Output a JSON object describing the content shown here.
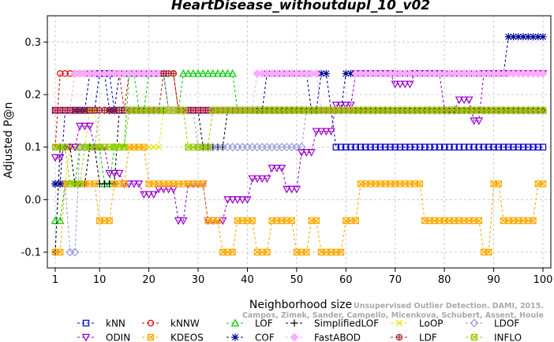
{
  "chart_data": {
    "type": "line",
    "title": "HeartDisease_withoutdupl_10_v02",
    "xlabel": "Neighborhood size",
    "ylabel": "Adjusted P@n",
    "xlim": [
      1,
      100
    ],
    "ylim": [
      -0.13,
      0.35
    ],
    "x_ticks": [
      "1",
      "10",
      "20",
      "30",
      "40",
      "50",
      "60",
      "70",
      "80",
      "90",
      "100"
    ],
    "y_ticks": [
      "-0.1",
      "0.0",
      "0.1",
      "0.2",
      "0.3"
    ],
    "grid": true,
    "legend_position": "bottom",
    "watermark": {
      "line1": "Unsupervised Outlier Detection. DAMI, 2015.",
      "line2": "Campos, Zimek, Sander, Campello, Micenkova, Schubert, Assent, Houle"
    },
    "series": [
      {
        "name": "kNN",
        "color": "#0000cc",
        "marker": "square",
        "segments": [
          [
            1,
            0.17
          ],
          [
            9,
            0.17
          ],
          [
            10,
            0.24
          ],
          [
            13,
            0.17
          ],
          [
            57,
            0.17
          ],
          [
            58,
            0.1
          ],
          [
            100,
            0.1
          ]
        ]
      },
      {
        "name": "kNNW",
        "color": "#dd0000",
        "marker": "circle",
        "segments": [
          [
            1,
            0.1
          ],
          [
            2,
            0.24
          ],
          [
            14,
            0.24
          ],
          [
            15,
            0.17
          ],
          [
            16,
            0.24
          ],
          [
            25,
            0.24
          ],
          [
            26,
            0.17
          ],
          [
            100,
            0.17
          ]
        ]
      },
      {
        "name": "LOF",
        "color": "#00cc00",
        "marker": "triangle",
        "segments": [
          [
            1,
            -0.04
          ],
          [
            3,
            0.03
          ],
          [
            6,
            0.1
          ],
          [
            11,
            0.03
          ],
          [
            13,
            0.1
          ],
          [
            16,
            0.24
          ],
          [
            18,
            0.17
          ],
          [
            20,
            0.24
          ],
          [
            24,
            0.17
          ],
          [
            27,
            0.24
          ],
          [
            36,
            0.24
          ],
          [
            38,
            0.17
          ],
          [
            100,
            0.17
          ]
        ]
      },
      {
        "name": "SimplifiedLOF",
        "color": "#000000",
        "marker": "plus",
        "segments": [
          [
            1,
            -0.1
          ],
          [
            2,
            0.1
          ],
          [
            5,
            0.03
          ],
          [
            8,
            0.1
          ],
          [
            10,
            0.03
          ],
          [
            14,
            0.17
          ],
          [
            30,
            0.17
          ],
          [
            31,
            0.1
          ],
          [
            35,
            0.1
          ],
          [
            36,
            0.17
          ],
          [
            100,
            0.17
          ]
        ]
      },
      {
        "name": "LoOP",
        "color": "#e6e600",
        "marker": "x",
        "segments": [
          [
            1,
            0.03
          ],
          [
            4,
            0.1
          ],
          [
            8,
            0.17
          ],
          [
            10,
            0.1
          ],
          [
            20,
            0.1
          ],
          [
            23,
            0.17
          ],
          [
            100,
            0.17
          ]
        ]
      },
      {
        "name": "LDOF",
        "color": "#9999dd",
        "marker": "diamond",
        "segments": [
          [
            1,
            0.03
          ],
          [
            4,
            -0.1
          ],
          [
            6,
            0.1
          ],
          [
            10,
            0.17
          ],
          [
            30,
            0.1
          ],
          [
            48,
            0.1
          ],
          [
            52,
            0.17
          ],
          [
            100,
            0.17
          ]
        ]
      },
      {
        "name": "ODIN",
        "color": "#9900cc",
        "marker": "triangle-down",
        "segments": [
          [
            1,
            0.08
          ],
          [
            3,
            0.1
          ],
          [
            6,
            0.14
          ],
          [
            9,
            0.1
          ],
          [
            12,
            0.05
          ],
          [
            15,
            0.03
          ],
          [
            19,
            0.01
          ],
          [
            22,
            0.02
          ],
          [
            26,
            -0.04
          ],
          [
            28,
            0.03
          ],
          [
            32,
            -0.04
          ],
          [
            36,
            0.0
          ],
          [
            39,
            0.0
          ],
          [
            41,
            0.04
          ],
          [
            45,
            0.06
          ],
          [
            48,
            0.02
          ],
          [
            51,
            0.09
          ],
          [
            54,
            0.13
          ],
          [
            58,
            0.18
          ],
          [
            62,
            0.24
          ],
          [
            66,
            0.24
          ],
          [
            70,
            0.22
          ],
          [
            74,
            0.24
          ],
          [
            80,
            0.17
          ],
          [
            83,
            0.19
          ],
          [
            86,
            0.15
          ],
          [
            88,
            0.24
          ],
          [
            100,
            0.24
          ]
        ]
      },
      {
        "name": "KDEOS",
        "color": "#ffaa00",
        "marker": "square-x",
        "segments": [
          [
            1,
            -0.1
          ],
          [
            3,
            0.03
          ],
          [
            10,
            -0.04
          ],
          [
            13,
            0.03
          ],
          [
            16,
            0.1
          ],
          [
            20,
            0.03
          ],
          [
            30,
            0.03
          ],
          [
            32,
            -0.04
          ],
          [
            35,
            -0.1
          ],
          [
            38,
            -0.04
          ],
          [
            42,
            -0.1
          ],
          [
            45,
            -0.04
          ],
          [
            50,
            -0.1
          ],
          [
            53,
            -0.04
          ],
          [
            55,
            -0.1
          ],
          [
            60,
            -0.04
          ],
          [
            63,
            0.03
          ],
          [
            74,
            0.03
          ],
          [
            76,
            -0.04
          ],
          [
            80,
            -0.04
          ],
          [
            84,
            -0.04
          ],
          [
            88,
            -0.1
          ],
          [
            90,
            0.03
          ],
          [
            92,
            -0.04
          ],
          [
            97,
            -0.04
          ],
          [
            99,
            0.03
          ],
          [
            100,
            0.03
          ]
        ]
      },
      {
        "name": "COF",
        "color": "#000099",
        "marker": "star",
        "segments": [
          [
            1,
            0.03
          ],
          [
            3,
            0.17
          ],
          [
            8,
            0.24
          ],
          [
            12,
            0.17
          ],
          [
            14,
            0.24
          ],
          [
            22,
            0.24
          ],
          [
            24,
            0.17
          ],
          [
            43,
            0.17
          ],
          [
            44,
            0.24
          ],
          [
            52,
            0.24
          ],
          [
            53,
            0.17
          ],
          [
            55,
            0.24
          ],
          [
            57,
            0.17
          ],
          [
            60,
            0.24
          ],
          [
            90,
            0.24
          ],
          [
            93,
            0.31
          ],
          [
            100,
            0.31
          ]
        ]
      },
      {
        "name": "FastABOD",
        "color": "#ffaaff",
        "marker": "diamond-filled",
        "segments": [
          [
            1,
            0.17
          ],
          [
            5,
            0.24
          ],
          [
            22,
            0.24
          ],
          [
            24,
            0.17
          ],
          [
            42,
            0.24
          ],
          [
            55,
            0.17
          ],
          [
            62,
            0.24
          ],
          [
            100,
            0.24
          ]
        ]
      },
      {
        "name": "LDF",
        "color": "#aa2222",
        "marker": "circle-plus",
        "segments": [
          [
            1,
            0.17
          ],
          [
            22,
            0.17
          ],
          [
            23,
            0.24
          ],
          [
            26,
            0.17
          ],
          [
            100,
            0.17
          ]
        ]
      },
      {
        "name": "INFLO",
        "color": "#99cc00",
        "marker": "square-x",
        "segments": [
          [
            1,
            0.1
          ],
          [
            4,
            0.03
          ],
          [
            7,
            0.1
          ],
          [
            12,
            0.1
          ],
          [
            16,
            0.17
          ],
          [
            26,
            0.17
          ],
          [
            28,
            0.1
          ],
          [
            30,
            0.1
          ],
          [
            33,
            0.17
          ],
          [
            100,
            0.17
          ]
        ]
      }
    ]
  }
}
